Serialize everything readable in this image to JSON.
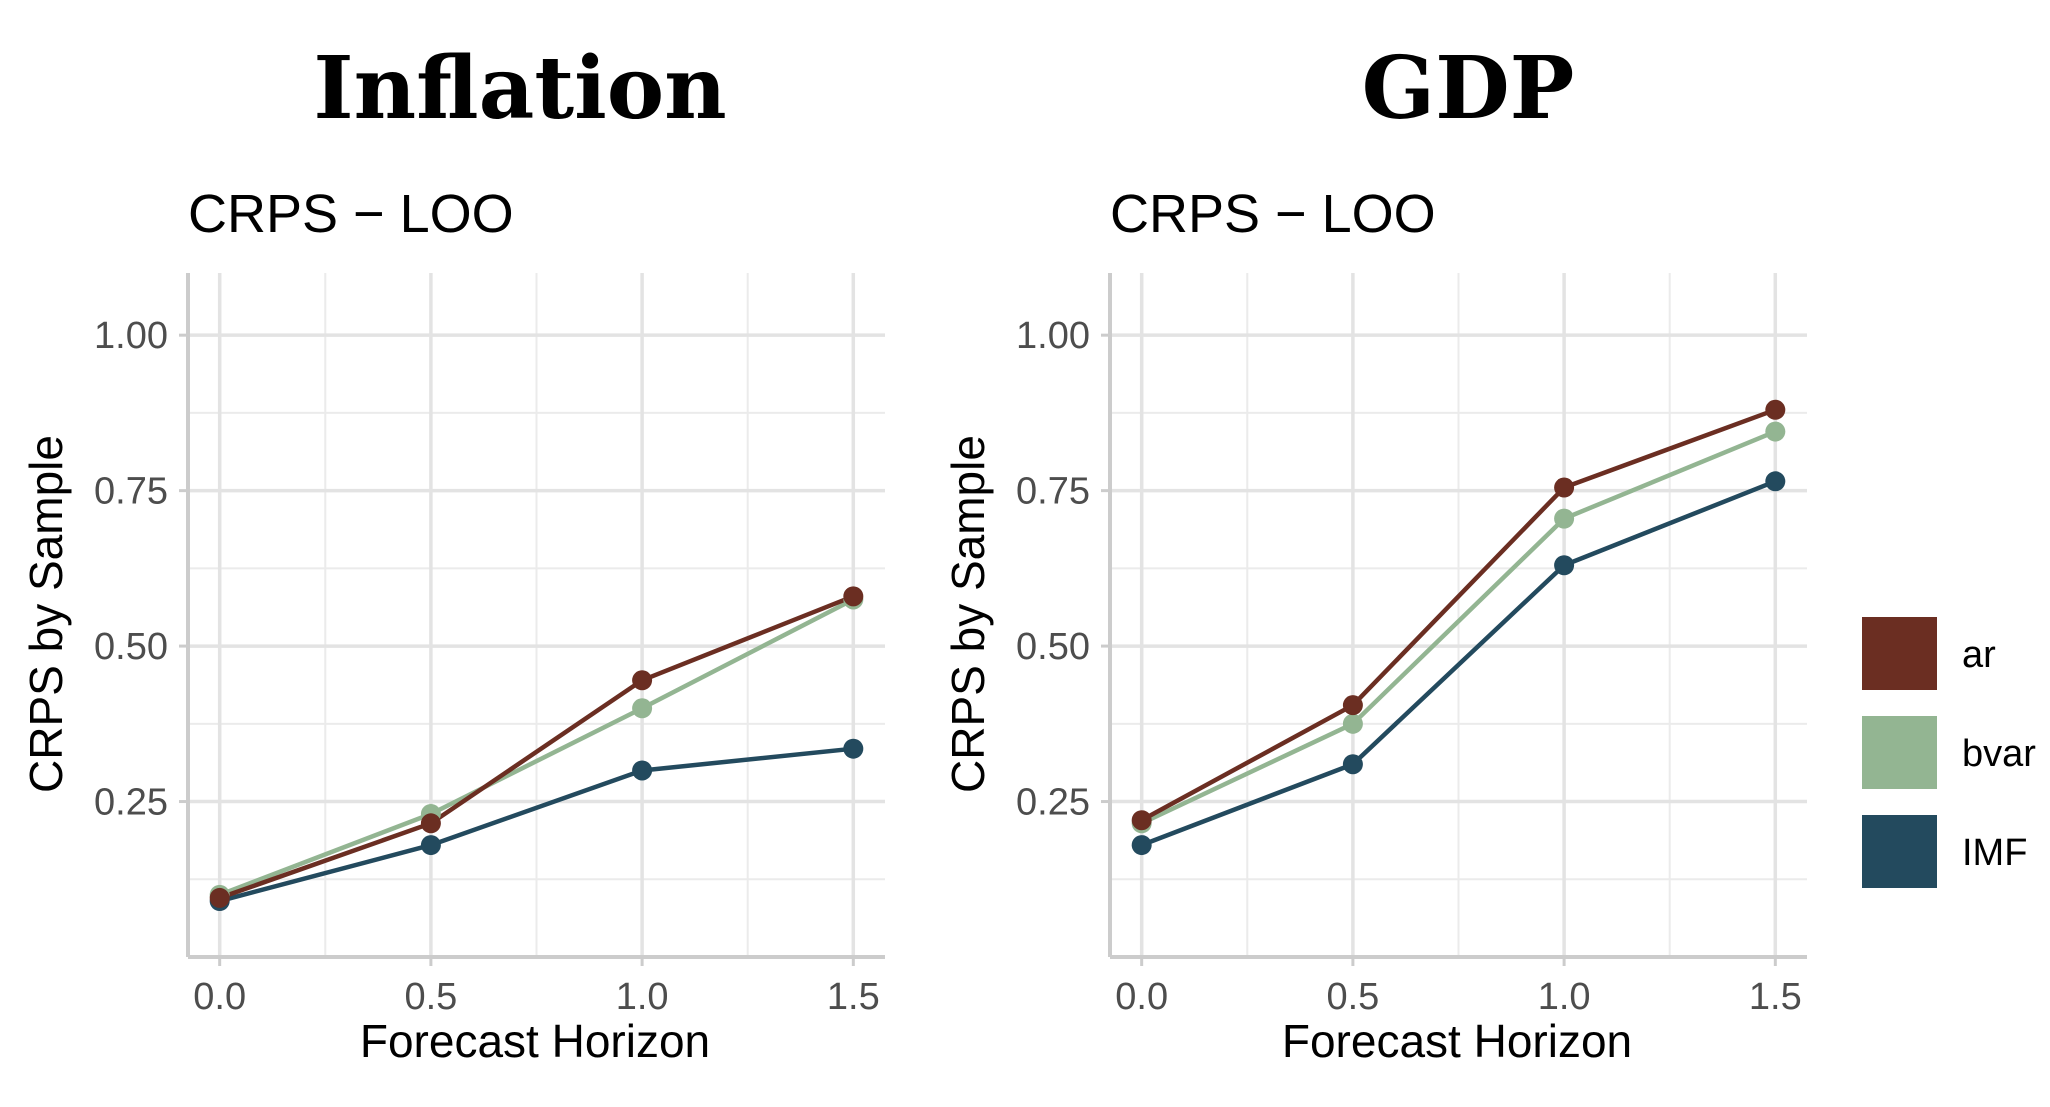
{
  "colors": {
    "ar": "#6b2e22",
    "bvar": "#93b592",
    "IMF": "#234a5e"
  },
  "legend": {
    "items": [
      {
        "key": "ar",
        "label": "ar"
      },
      {
        "key": "bvar",
        "label": "bvar"
      },
      {
        "key": "IMF",
        "label": "IMF"
      }
    ]
  },
  "chart_data": [
    {
      "type": "line",
      "title": "Inflation",
      "subtitle": "CRPS − LOO",
      "xlabel": "Forecast Horizon",
      "ylabel": "CRPS by Sample",
      "x": [
        0.0,
        0.5,
        1.0,
        1.5
      ],
      "xticks": [
        "0.0",
        "0.5",
        "1.0",
        "1.5"
      ],
      "yticks": [
        "0.25",
        "0.50",
        "0.75",
        "1.00"
      ],
      "xlim": [
        -0.075,
        1.575
      ],
      "ylim": [
        0.0,
        1.1
      ],
      "grid": true,
      "series": [
        {
          "name": "ar",
          "values": [
            0.095,
            0.215,
            0.445,
            0.58
          ]
        },
        {
          "name": "bvar",
          "values": [
            0.1,
            0.23,
            0.4,
            0.575
          ]
        },
        {
          "name": "IMF",
          "values": [
            0.09,
            0.18,
            0.3,
            0.335
          ]
        }
      ]
    },
    {
      "type": "line",
      "title": "GDP",
      "subtitle": "CRPS − LOO",
      "xlabel": "Forecast Horizon",
      "ylabel": "CRPS by Sample",
      "x": [
        0.0,
        0.5,
        1.0,
        1.5
      ],
      "xticks": [
        "0.0",
        "0.5",
        "1.0",
        "1.5"
      ],
      "yticks": [
        "0.25",
        "0.50",
        "0.75",
        "1.00"
      ],
      "xlim": [
        -0.075,
        1.575
      ],
      "ylim": [
        0.0,
        1.1
      ],
      "grid": true,
      "series": [
        {
          "name": "ar",
          "values": [
            0.22,
            0.405,
            0.755,
            0.88
          ]
        },
        {
          "name": "bvar",
          "values": [
            0.215,
            0.375,
            0.705,
            0.845
          ]
        },
        {
          "name": "IMF",
          "values": [
            0.18,
            0.31,
            0.63,
            0.765
          ]
        }
      ]
    }
  ]
}
